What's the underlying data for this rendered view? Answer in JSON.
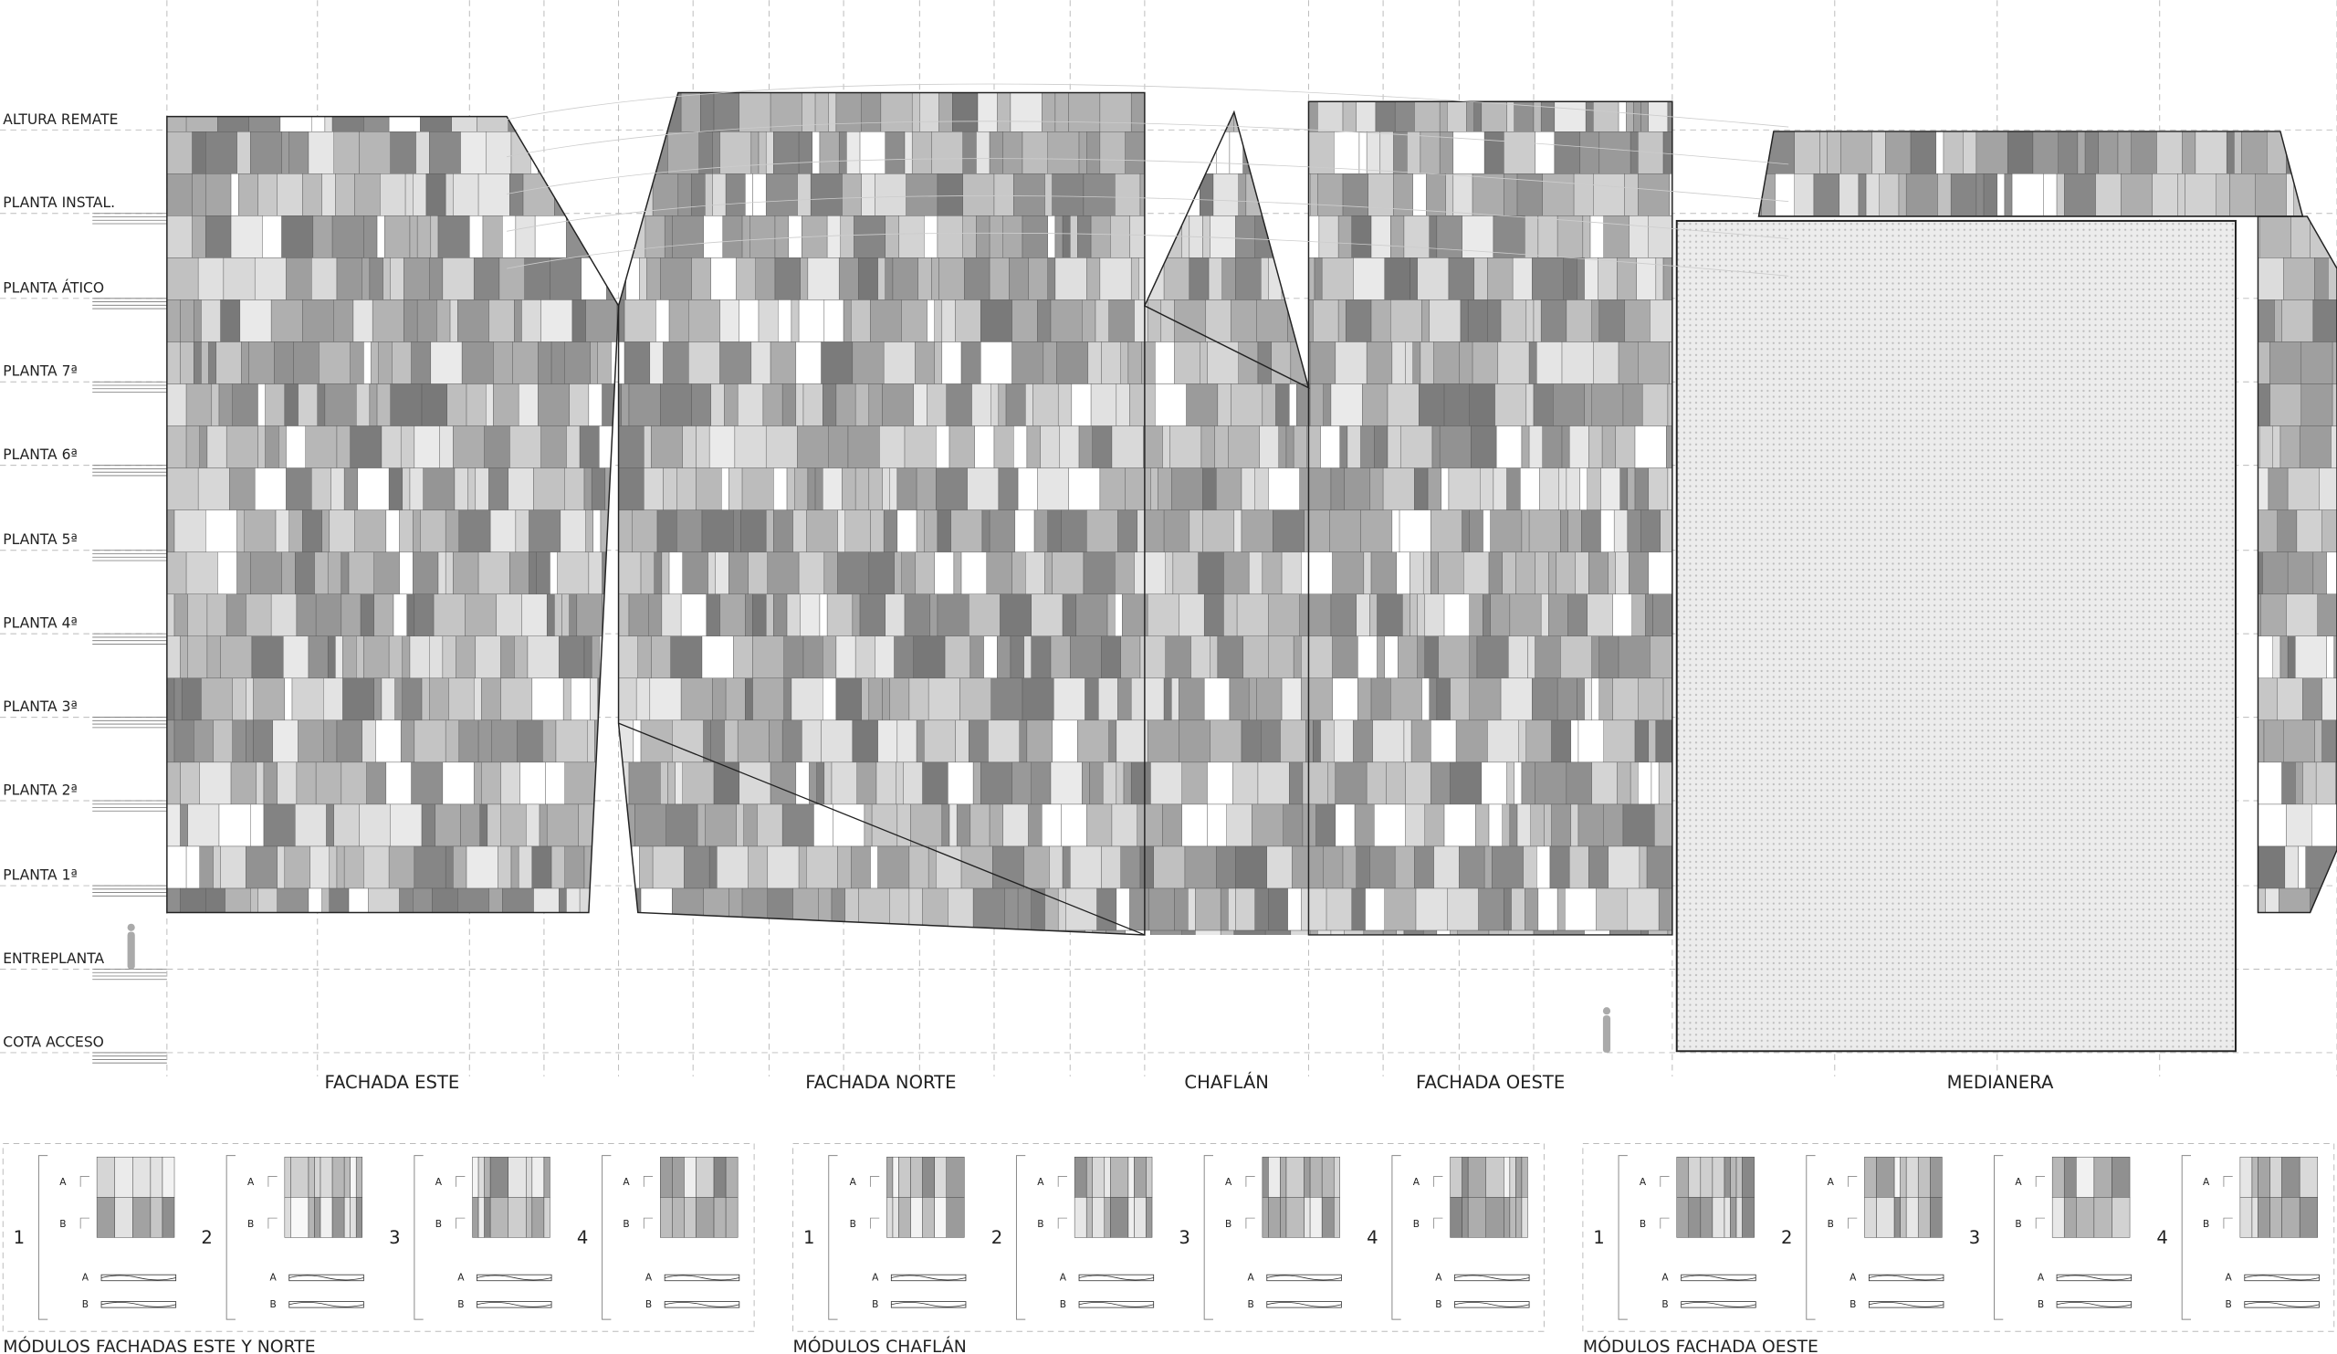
{
  "levels": [
    "ALTURA REMATE",
    "PLANTA INSTAL.",
    "PLANTA ÁTICO",
    "PLANTA 7ª",
    "PLANTA 6ª",
    "PLANTA 5ª",
    "PLANTA 4ª",
    "PLANTA 3ª",
    "PLANTA 2ª",
    "PLANTA 1ª",
    "ENTREPLANTA",
    "COTA ACCESO"
  ],
  "facades": [
    "FACHADA ESTE",
    "FACHADA NORTE",
    "CHAFLÁN",
    "FACHADA OESTE",
    "MEDIANERA"
  ],
  "module_groups": [
    {
      "title": "MÓDULOS FACHADAS ESTE Y NORTE",
      "modules": [
        "1",
        "2",
        "3",
        "4"
      ]
    },
    {
      "title": "MÓDULOS CHAFLÁN",
      "modules": [
        "1",
        "2",
        "3",
        "4"
      ]
    },
    {
      "title": "MÓDULOS FACHADA OESTE",
      "modules": [
        "1",
        "2",
        "3",
        "4"
      ]
    }
  ],
  "row_labels": [
    "A",
    "B"
  ]
}
